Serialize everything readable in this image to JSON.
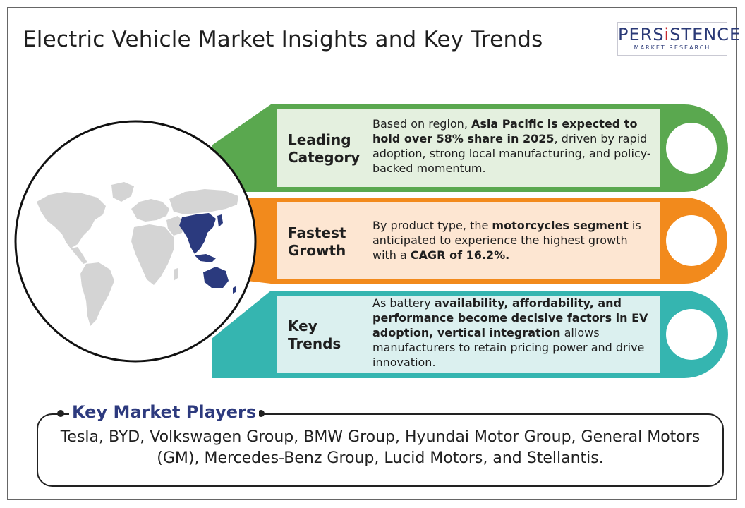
{
  "title": "Electric Vehicle Market Insights and Key Trends",
  "logo": {
    "main_pre": "PERS",
    "main_i": "i",
    "main_post": "STENCE",
    "sub": "MARKET RESEARCH"
  },
  "rows": [
    {
      "label": "Leading Category",
      "text_segments": [
        {
          "t": "Based on region, ",
          "b": false
        },
        {
          "t": "Asia Pacific is expected to hold over 58% share in 2025",
          "b": true
        },
        {
          "t": ", driven by rapid adoption, strong local manufacturing, and policy-backed momentum.",
          "b": false
        }
      ],
      "color": "#5aa84f",
      "fill": "#e4f0df"
    },
    {
      "label": "Fastest Growth",
      "text_segments": [
        {
          "t": "By product type, the ",
          "b": false
        },
        {
          "t": "motorcycles segment",
          "b": true
        },
        {
          "t": " is anticipated to experience the highest growth with a ",
          "b": false
        },
        {
          "t": "CAGR of 16.2%.",
          "b": true
        }
      ],
      "color": "#f28a1c",
      "fill": "#fde6d2"
    },
    {
      "label": "Key Trends",
      "text_segments": [
        {
          "t": "As battery ",
          "b": false
        },
        {
          "t": "availability, affordability, and performance become decisive factors in EV adoption, vertical integration",
          "b": true
        },
        {
          "t": " allows manufacturers to retain pricing power and drive innovation.",
          "b": false
        }
      ],
      "color": "#35b5b0",
      "fill": "#dbf0ef"
    }
  ],
  "key_players": {
    "title": "Key Market Players",
    "text": "Tesla, BYD, Volkswagen Group, BMW Group, Hyundai Motor Group, General Motors (GM), Mercedes-Benz Group, Lucid Motors, and Stellantis."
  },
  "colors": {
    "map_land": "#d4d4d4",
    "map_highlight": "#2b3a7e",
    "title_accent": "#2d3a7e"
  }
}
